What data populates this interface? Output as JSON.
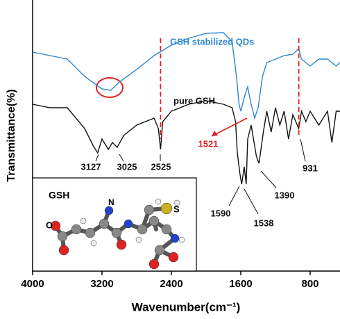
{
  "chart_data": {
    "type": "line",
    "x_label": "Wavenumber(cm⁻¹)",
    "y_label": "Transmittance(%)",
    "xlim": [
      4000,
      456
    ],
    "xticks": [
      4000,
      3200,
      2400,
      1600,
      800
    ],
    "ylim": [
      0,
      390
    ],
    "series": [
      {
        "name": "GSH stabilized QDs",
        "color": "#2a86d4",
        "x": [
          4000,
          3800,
          3600,
          3400,
          3200,
          3100,
          3000,
          2800,
          2600,
          2400,
          2200,
          2000,
          1800,
          1700,
          1650,
          1620,
          1600,
          1560,
          1521,
          1480,
          1440,
          1400,
          1350,
          1300,
          1200,
          1100,
          1000,
          931,
          900,
          800,
          700,
          600,
          500,
          456
        ],
        "values": [
          315,
          310,
          305,
          280,
          262,
          260,
          272,
          290,
          310,
          325,
          335,
          342,
          343,
          330,
          280,
          240,
          230,
          250,
          265,
          240,
          220,
          235,
          280,
          300,
          305,
          310,
          312,
          320,
          305,
          295,
          305,
          305,
          295,
          300
        ]
      },
      {
        "name": "pure GSH",
        "color": "#111111",
        "x": [
          4000,
          3800,
          3600,
          3500,
          3400,
          3300,
          3250,
          3200,
          3127,
          3080,
          3025,
          2950,
          2800,
          2600,
          2550,
          2525,
          2500,
          2400,
          2200,
          2000,
          1800,
          1700,
          1660,
          1640,
          1610,
          1590,
          1560,
          1538,
          1520,
          1480,
          1440,
          1420,
          1390,
          1340,
          1300,
          1250,
          1200,
          1150,
          1100,
          1050,
          1000,
          931,
          900,
          850,
          800,
          700,
          600,
          550,
          500,
          456
        ],
        "values": [
          240,
          235,
          235,
          220,
          205,
          180,
          170,
          190,
          175,
          185,
          178,
          195,
          210,
          220,
          205,
          175,
          215,
          230,
          240,
          245,
          240,
          235,
          215,
          170,
          140,
          125,
          150,
          125,
          190,
          210,
          180,
          165,
          155,
          200,
          230,
          200,
          235,
          210,
          230,
          190,
          225,
          205,
          230,
          215,
          230,
          210,
          230,
          185,
          230,
          230
        ]
      }
    ],
    "dashed_lines": [
      2525,
      931
    ],
    "annotations": [
      3127,
      3025,
      2525,
      1521,
      1590,
      1538,
      1390,
      931
    ],
    "inset": {
      "title": "GSH",
      "atom_labels": [
        "N",
        "S",
        "O"
      ]
    }
  }
}
